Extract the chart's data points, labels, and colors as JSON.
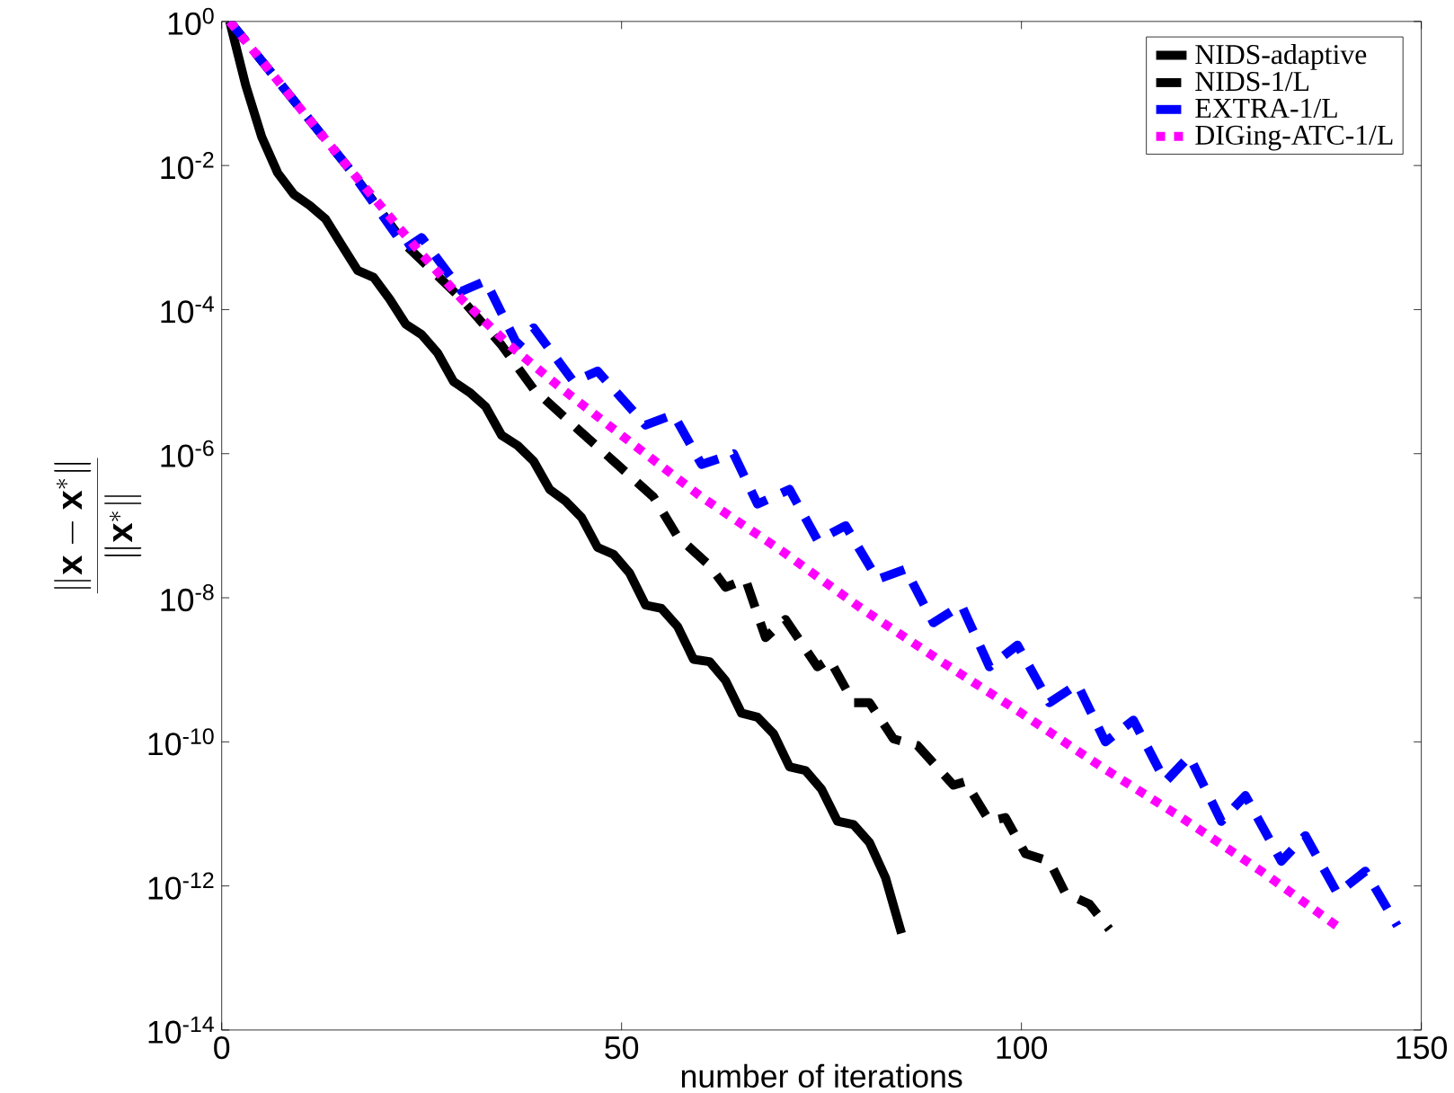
{
  "chart_data": {
    "type": "line",
    "xlabel": "number of iterations",
    "ylabel": "\\frac{\\|\\mathbf{x}-\\mathbf{x}^*\\|}{\\|\\mathbf{x}^*\\|}",
    "xlim": [
      0,
      150
    ],
    "ylim": [
      1e-14,
      1
    ],
    "xticks": [
      0,
      50,
      100,
      150
    ],
    "yticks": [
      {
        "value": 1e-14,
        "label": "10$^{-14}$"
      },
      {
        "value": 1e-12,
        "label": "10$^{-12}$"
      },
      {
        "value": 1e-10,
        "label": "10$^{-10}$"
      },
      {
        "value": 1e-08,
        "label": "10$^{-8}$"
      },
      {
        "value": 1e-06,
        "label": "10$^{-6}$"
      },
      {
        "value": 0.0001,
        "label": "10$^{-4}$"
      },
      {
        "value": 0.01,
        "label": "10$^{-2}$"
      },
      {
        "value": 1,
        "label": "10$^{0}$"
      }
    ],
    "log": "y",
    "legend": "top right",
    "series": [
      {
        "name": "NIDS-adaptive",
        "color": "#000000",
        "line_style": "solid",
        "x": [
          1,
          3,
          5,
          7,
          9,
          11,
          13,
          15,
          17,
          19,
          21,
          23,
          25,
          27,
          29,
          31,
          33,
          35,
          37,
          39,
          41,
          43,
          45,
          47,
          49,
          51,
          53,
          55,
          57,
          59,
          61,
          63,
          65,
          67,
          69,
          71,
          73,
          75,
          77,
          79,
          81,
          83,
          85
        ],
        "values": [
          1,
          0.13,
          0.025,
          0.0079,
          0.004,
          0.0028,
          0.0018,
          0.00079,
          0.00035,
          0.00028,
          0.00014,
          6.3e-05,
          4.5e-05,
          2.5e-05,
          1e-05,
          7.1e-06,
          4.5e-06,
          1.8e-06,
          1.3e-06,
          7.9e-07,
          3.2e-07,
          2.2e-07,
          1.3e-07,
          5e-08,
          4e-08,
          2.2e-08,
          7.9e-09,
          7.1e-09,
          4e-09,
          1.4e-09,
          1.3e-09,
          7.1e-10,
          2.5e-10,
          2.2e-10,
          1.3e-10,
          4.5e-11,
          4e-11,
          2.2e-11,
          7.9e-12,
          7.1e-12,
          4e-12,
          1.3e-12,
          2.2e-13
        ]
      },
      {
        "name": "NIDS-1/L",
        "color": "#000000",
        "line_style": "dashed",
        "x": [
          1,
          8,
          16,
          23,
          30,
          35,
          39,
          44.5,
          49,
          54,
          57,
          61,
          63,
          65.5,
          68,
          70.5,
          74.5,
          76,
          79,
          81,
          84,
          87,
          91.5,
          93,
          96,
          98,
          100.5,
          103.5,
          105.5,
          108.5,
          111
        ],
        "values": [
          1,
          null,
          0.0089,
          0.00079,
          0.00014,
          3.2e-05,
          7.9e-06,
          2.2e-06,
          7.9e-07,
          2.5e-07,
          7.1e-08,
          2.8e-08,
          1.4e-08,
          1.8e-08,
          2.8e-09,
          5e-09,
          1.1e-09,
          1.4e-09,
          3.5e-10,
          3.5e-10,
          1.1e-10,
          8.9e-11,
          2.5e-11,
          2.8e-11,
          7.9e-12,
          8.9e-12,
          2.8e-12,
          2.2e-12,
          7.9e-13,
          5.6e-13,
          2.5e-13
        ]
      },
      {
        "name": "EXTRA-1/L",
        "color": "#0000ff",
        "line_style": "dashed",
        "x": [
          1,
          8,
          16,
          23,
          25,
          30,
          33,
          37,
          39,
          44,
          47,
          53,
          56.5,
          60,
          64,
          67,
          71,
          74.5,
          78,
          82,
          85.5,
          89,
          92.5,
          96,
          99.5,
          103.5,
          107,
          110.5,
          114,
          118,
          121,
          125,
          128,
          132.5,
          135.5,
          139.5,
          143,
          147
        ],
        "values": [
          1,
          0.11,
          0.0089,
          0.00071,
          0.001,
          0.00018,
          0.00025,
          3.2e-05,
          5.6e-05,
          1e-05,
          1.4e-05,
          2.5e-06,
          3.5e-06,
          7.1e-07,
          1e-06,
          2e-07,
          3.2e-07,
          6.3e-08,
          1e-07,
          1.8e-08,
          2.5e-08,
          4.5e-09,
          7.9e-09,
          1.1e-09,
          2.2e-09,
          3.5e-10,
          6.3e-10,
          1e-10,
          2e-10,
          2.8e-11,
          6.3e-11,
          7.9e-12,
          1.8e-11,
          2.2e-12,
          5e-12,
          7.9e-13,
          1.6e-12,
          2.8e-13
        ]
      },
      {
        "name": "DIGing-ATC-1/L",
        "color": "#ff00ff",
        "line_style": "dotted",
        "x": [
          1,
          8,
          16,
          24,
          30,
          36,
          42,
          50,
          60,
          70,
          80,
          90,
          100,
          110,
          120,
          130,
          140
        ],
        "values": [
          1,
          0.11,
          0.0089,
          0.00079,
          0.00014,
          3.2e-05,
          8.9e-06,
          1.8e-06,
          2.5e-07,
          4.5e-08,
          7.1e-09,
          1.3e-09,
          2.5e-10,
          4.5e-11,
          8.9e-12,
          1.6e-12,
          2.5e-13
        ]
      }
    ]
  }
}
